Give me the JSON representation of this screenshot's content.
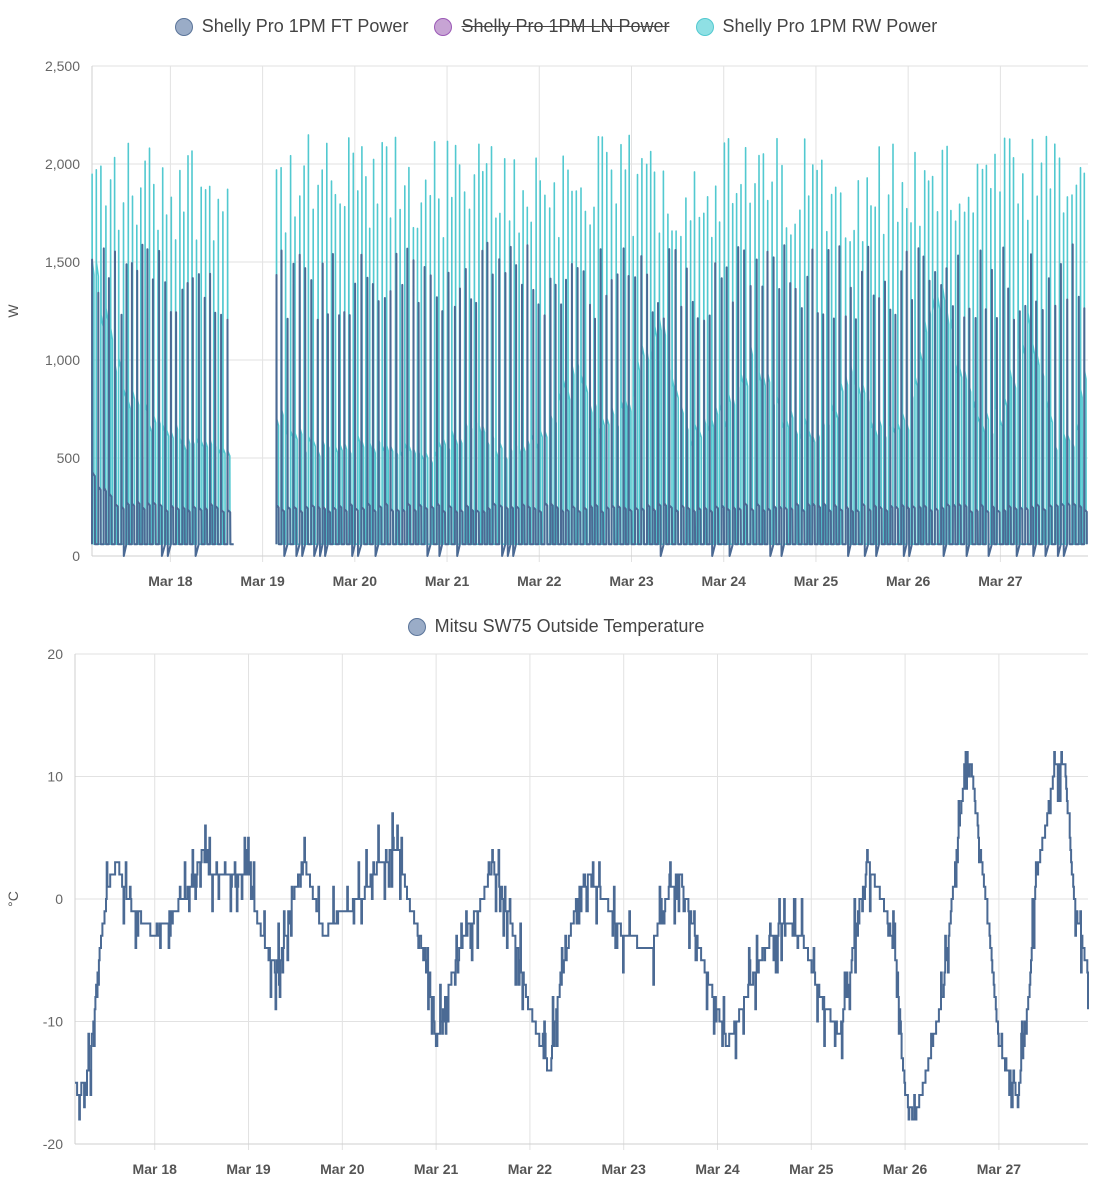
{
  "charts": [
    {
      "type": "line",
      "legend": [
        {
          "name": "Shelly Pro 1PM FT Power",
          "color": "#5a7499",
          "fill": "#9aacc7",
          "hidden": false
        },
        {
          "name": "Shelly Pro 1PM LN Power",
          "color": "#9b59b6",
          "fill": "#c7a4d4",
          "hidden": true
        },
        {
          "name": "Shelly Pro 1PM RW Power",
          "color": "#52c9d0",
          "fill": "#8fe0e4",
          "hidden": false
        }
      ],
      "ylabel": "W",
      "ylim": [
        0,
        2500
      ],
      "yticks": [
        0,
        500,
        1000,
        1500,
        2000,
        2500
      ],
      "ytick_labels": [
        "0",
        "500",
        "1,000",
        "1,500",
        "2,000",
        "2,500"
      ],
      "x_range_days": [
        17.15,
        27.95
      ],
      "xticks": [
        18,
        19,
        20,
        21,
        22,
        23,
        24,
        25,
        26,
        27
      ],
      "xtick_labels": [
        "Mar 18",
        "Mar 19",
        "Mar 20",
        "Mar 21",
        "Mar 22",
        "Mar 23",
        "Mar 24",
        "Mar 25",
        "Mar 26",
        "Mar 27"
      ],
      "gap_days": [
        18.65,
        19.15
      ],
      "series": [
        {
          "name": "Shelly Pro 1PM RW Power",
          "color": "#52c9d0",
          "idle": 60,
          "cycle_days": 0.048,
          "base_points": [
            [
              17.15,
              1400
            ],
            [
              17.5,
              800
            ],
            [
              17.8,
              650
            ],
            [
              18.3,
              560
            ],
            [
              18.65,
              480
            ],
            [
              19.15,
              700
            ],
            [
              19.5,
              550
            ],
            [
              20.3,
              560
            ],
            [
              20.8,
              480
            ],
            [
              21.3,
              650
            ],
            [
              21.6,
              500
            ],
            [
              22.0,
              600
            ],
            [
              22.4,
              900
            ],
            [
              22.7,
              620
            ],
            [
              23.0,
              800
            ],
            [
              23.3,
              1200
            ],
            [
              23.6,
              600
            ],
            [
              24.0,
              700
            ],
            [
              24.3,
              1000
            ],
            [
              24.6,
              700
            ],
            [
              25.0,
              600
            ],
            [
              25.4,
              900
            ],
            [
              25.7,
              600
            ],
            [
              26.0,
              700
            ],
            [
              26.3,
              1350
            ],
            [
              26.5,
              1000
            ],
            [
              26.8,
              650
            ],
            [
              27.0,
              700
            ],
            [
              27.3,
              1150
            ],
            [
              27.6,
              550
            ],
            [
              27.8,
              600
            ],
            [
              27.95,
              950
            ]
          ],
          "peaks": [
            1600,
            2150
          ]
        },
        {
          "name": "Shelly Pro 1PM FT Power",
          "color": "#4b6a94",
          "idle": 60,
          "cycle_days": 0.062,
          "base_points": [
            [
              17.15,
              380
            ],
            [
              17.4,
              250
            ],
            [
              18.65,
              240
            ],
            [
              19.15,
              240
            ],
            [
              27.95,
              240
            ]
          ],
          "peaks": [
            1200,
            1600
          ]
        }
      ]
    },
    {
      "type": "line",
      "legend": [
        {
          "name": "Mitsu SW75 Outside Temperature",
          "color": "#5a7499",
          "fill": "#9aacc7",
          "hidden": false
        }
      ],
      "ylabel": "°C",
      "ylim": [
        -20,
        20
      ],
      "yticks": [
        -20,
        -10,
        0,
        10,
        20
      ],
      "ytick_labels": [
        "-20",
        "-10",
        "0",
        "10",
        "20"
      ],
      "x_range_days": [
        17.15,
        27.95
      ],
      "xticks": [
        18,
        19,
        20,
        21,
        22,
        23,
        24,
        25,
        26,
        27
      ],
      "xtick_labels": [
        "Mar 18",
        "Mar 19",
        "Mar 20",
        "Mar 21",
        "Mar 22",
        "Mar 23",
        "Mar 24",
        "Mar 25",
        "Mar 26",
        "Mar 27"
      ],
      "series": [
        {
          "name": "Mitsu SW75 Outside Temperature",
          "color": "#4b6a94",
          "points": [
            [
              17.15,
              -15
            ],
            [
              17.2,
              -16
            ],
            [
              17.3,
              -14
            ],
            [
              17.4,
              -5
            ],
            [
              17.5,
              1
            ],
            [
              17.6,
              3
            ],
            [
              17.7,
              0
            ],
            [
              17.9,
              -2
            ],
            [
              18.0,
              -3
            ],
            [
              18.2,
              -1
            ],
            [
              18.4,
              1
            ],
            [
              18.5,
              4
            ],
            [
              18.6,
              2
            ],
            [
              19.0,
              2
            ],
            [
              19.1,
              -2
            ],
            [
              19.3,
              -6
            ],
            [
              19.4,
              -3
            ],
            [
              19.5,
              1
            ],
            [
              19.6,
              3
            ],
            [
              19.8,
              -3
            ],
            [
              20.0,
              -1
            ],
            [
              20.2,
              0
            ],
            [
              20.4,
              3
            ],
            [
              20.6,
              4
            ],
            [
              20.7,
              0
            ],
            [
              20.9,
              -5
            ],
            [
              21.0,
              -12
            ],
            [
              21.1,
              -8
            ],
            [
              21.3,
              -3
            ],
            [
              21.5,
              0
            ],
            [
              21.6,
              3
            ],
            [
              21.8,
              -2
            ],
            [
              22.0,
              -9
            ],
            [
              22.2,
              -14
            ],
            [
              22.3,
              -8
            ],
            [
              22.5,
              0
            ],
            [
              22.6,
              2
            ],
            [
              22.8,
              0
            ],
            [
              23.0,
              -3
            ],
            [
              23.3,
              -4
            ],
            [
              23.5,
              1
            ],
            [
              23.6,
              2
            ],
            [
              23.8,
              -4
            ],
            [
              24.0,
              -9
            ],
            [
              24.1,
              -12
            ],
            [
              24.3,
              -8
            ],
            [
              24.5,
              -4
            ],
            [
              24.7,
              -2
            ],
            [
              24.9,
              -3
            ],
            [
              25.1,
              -8
            ],
            [
              25.3,
              -11
            ],
            [
              25.4,
              -7
            ],
            [
              25.5,
              -1
            ],
            [
              25.6,
              3
            ],
            [
              25.8,
              -1
            ],
            [
              25.9,
              -5
            ],
            [
              26.0,
              -16
            ],
            [
              26.1,
              -18
            ],
            [
              26.2,
              -15
            ],
            [
              26.4,
              -8
            ],
            [
              26.5,
              0
            ],
            [
              26.6,
              8
            ],
            [
              26.7,
              11
            ],
            [
              26.8,
              4
            ],
            [
              26.9,
              -3
            ],
            [
              27.0,
              -12
            ],
            [
              27.1,
              -14
            ],
            [
              27.2,
              -16
            ],
            [
              27.3,
              -10
            ],
            [
              27.4,
              2
            ],
            [
              27.5,
              6
            ],
            [
              27.6,
              11
            ],
            [
              27.7,
              11
            ],
            [
              27.8,
              0
            ],
            [
              27.95,
              -6
            ]
          ]
        }
      ]
    }
  ]
}
